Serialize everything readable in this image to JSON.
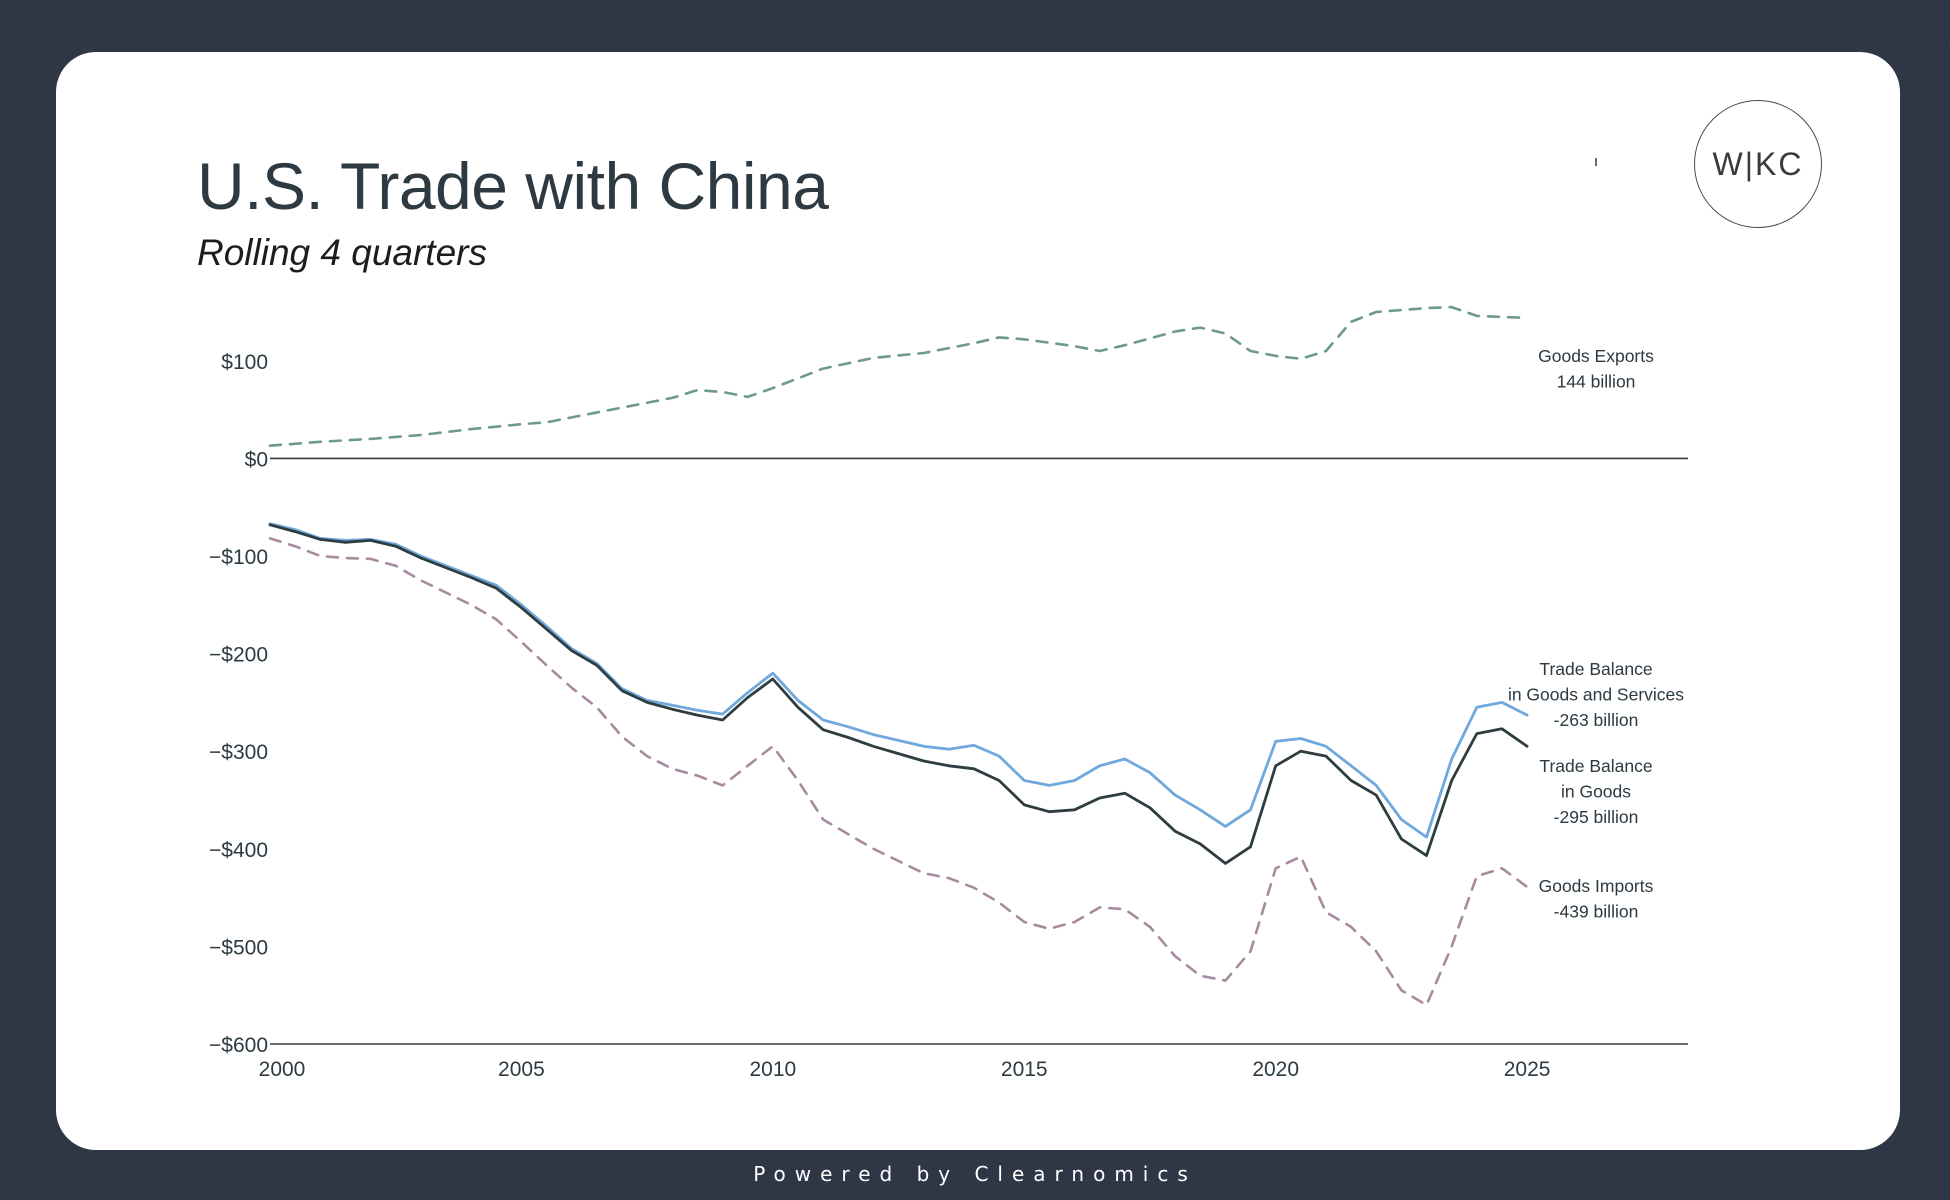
{
  "header": {
    "title": "U.S. Trade with China",
    "subtitle": "Rolling 4 quarters",
    "logo_text": "W|KC"
  },
  "footer": {
    "text": "Powered by Clearnomics"
  },
  "chart_data": {
    "type": "line",
    "title": "U.S. Trade with China",
    "subtitle": "Rolling 4 quarters",
    "xlabel": "",
    "ylabel": "",
    "xlim": [
      2000,
      2028.2
    ],
    "ylim": [
      -600,
      150
    ],
    "x_ticks": [
      2000,
      2005,
      2010,
      2015,
      2020,
      2025
    ],
    "y_ticks": [
      {
        "value": 100,
        "label": "$100"
      },
      {
        "value": 0,
        "label": "$0"
      },
      {
        "value": -100,
        "label": "−$100"
      },
      {
        "value": -200,
        "label": "−$200"
      },
      {
        "value": -300,
        "label": "−$300"
      },
      {
        "value": -400,
        "label": "−$400"
      },
      {
        "value": -500,
        "label": "−$500"
      },
      {
        "value": -600,
        "label": "−$600"
      }
    ],
    "grid": false,
    "colors": {
      "exports": "#6e9b87",
      "imports": "#a88aa0",
      "balance_goods_services": "#6fa8dc",
      "balance_goods": "#2e3d40",
      "axis": "#3a3a3a",
      "text": "#2d3a42"
    },
    "series": [
      {
        "name": "Goods Exports",
        "label_lines": [
          "Goods Exports",
          "144 billion"
        ],
        "style": "dashed",
        "color_key": "exports",
        "points": [
          [
            2000,
            13
          ],
          [
            2001,
            17
          ],
          [
            2002,
            20
          ],
          [
            2003,
            24
          ],
          [
            2004,
            30
          ],
          [
            2005,
            35
          ],
          [
            2005.5,
            37
          ],
          [
            2006,
            42
          ],
          [
            2007,
            52
          ],
          [
            2008,
            62
          ],
          [
            2008.5,
            70
          ],
          [
            2009,
            68
          ],
          [
            2009.5,
            63
          ],
          [
            2010,
            72
          ],
          [
            2011,
            92
          ],
          [
            2012,
            103
          ],
          [
            2013,
            108
          ],
          [
            2014,
            118
          ],
          [
            2014.5,
            124
          ],
          [
            2015,
            122
          ],
          [
            2016,
            115
          ],
          [
            2016.5,
            110
          ],
          [
            2017,
            116
          ],
          [
            2018,
            130
          ],
          [
            2018.5,
            134
          ],
          [
            2019,
            128
          ],
          [
            2019.5,
            110
          ],
          [
            2020,
            105
          ],
          [
            2020.5,
            102
          ],
          [
            2021,
            110
          ],
          [
            2021.5,
            140
          ],
          [
            2022,
            150
          ],
          [
            2023,
            154
          ],
          [
            2023.5,
            155
          ],
          [
            2024,
            146
          ],
          [
            2025,
            144
          ]
        ]
      },
      {
        "name": "Trade Balance in Goods and Services",
        "label_lines": [
          "Trade Balance",
          "in Goods and Services",
          "-263 billion"
        ],
        "style": "solid",
        "color_key": "balance_goods_services",
        "points": [
          [
            2000,
            -67
          ],
          [
            2000.5,
            -73
          ],
          [
            2001,
            -82
          ],
          [
            2001.5,
            -84
          ],
          [
            2002,
            -83
          ],
          [
            2002.5,
            -88
          ],
          [
            2003,
            -100
          ],
          [
            2004,
            -120
          ],
          [
            2004.5,
            -130
          ],
          [
            2005,
            -150
          ],
          [
            2005.5,
            -172
          ],
          [
            2006,
            -195
          ],
          [
            2006.5,
            -210
          ],
          [
            2007,
            -236
          ],
          [
            2007.5,
            -248
          ],
          [
            2008,
            -253
          ],
          [
            2008.5,
            -258
          ],
          [
            2009,
            -262
          ],
          [
            2009.5,
            -240
          ],
          [
            2010,
            -220
          ],
          [
            2010.5,
            -248
          ],
          [
            2011,
            -268
          ],
          [
            2011.5,
            -275
          ],
          [
            2012,
            -283
          ],
          [
            2013,
            -295
          ],
          [
            2013.5,
            -298
          ],
          [
            2014,
            -294
          ],
          [
            2014.5,
            -305
          ],
          [
            2015,
            -330
          ],
          [
            2015.5,
            -335
          ],
          [
            2016,
            -330
          ],
          [
            2016.5,
            -315
          ],
          [
            2017,
            -308
          ],
          [
            2017.5,
            -322
          ],
          [
            2018,
            -345
          ],
          [
            2018.5,
            -360
          ],
          [
            2019,
            -377
          ],
          [
            2019.5,
            -360
          ],
          [
            2020,
            -290
          ],
          [
            2020.5,
            -287
          ],
          [
            2021,
            -295
          ],
          [
            2021.5,
            -315
          ],
          [
            2022,
            -335
          ],
          [
            2022.5,
            -370
          ],
          [
            2023,
            -388
          ],
          [
            2023.5,
            -308
          ],
          [
            2024,
            -255
          ],
          [
            2024.5,
            -250
          ],
          [
            2025,
            -263
          ]
        ]
      },
      {
        "name": "Trade Balance in Goods",
        "label_lines": [
          "Trade Balance",
          "in Goods",
          "-295 billion"
        ],
        "style": "solid",
        "color_key": "balance_goods",
        "points": [
          [
            2000,
            -68
          ],
          [
            2000.5,
            -75
          ],
          [
            2001,
            -83
          ],
          [
            2001.5,
            -86
          ],
          [
            2002,
            -84
          ],
          [
            2002.5,
            -90
          ],
          [
            2003,
            -102
          ],
          [
            2004,
            -122
          ],
          [
            2004.5,
            -133
          ],
          [
            2005,
            -153
          ],
          [
            2005.5,
            -175
          ],
          [
            2006,
            -197
          ],
          [
            2006.5,
            -212
          ],
          [
            2007,
            -238
          ],
          [
            2007.5,
            -250
          ],
          [
            2008,
            -257
          ],
          [
            2008.5,
            -263
          ],
          [
            2009,
            -268
          ],
          [
            2009.5,
            -245
          ],
          [
            2010,
            -226
          ],
          [
            2010.5,
            -255
          ],
          [
            2011,
            -278
          ],
          [
            2011.5,
            -286
          ],
          [
            2012,
            -295
          ],
          [
            2013,
            -310
          ],
          [
            2013.5,
            -315
          ],
          [
            2014,
            -318
          ],
          [
            2014.5,
            -330
          ],
          [
            2015,
            -355
          ],
          [
            2015.5,
            -362
          ],
          [
            2016,
            -360
          ],
          [
            2016.5,
            -348
          ],
          [
            2017,
            -343
          ],
          [
            2017.5,
            -358
          ],
          [
            2018,
            -382
          ],
          [
            2018.5,
            -395
          ],
          [
            2019,
            -415
          ],
          [
            2019.5,
            -398
          ],
          [
            2020,
            -315
          ],
          [
            2020.5,
            -300
          ],
          [
            2021,
            -305
          ],
          [
            2021.5,
            -330
          ],
          [
            2022,
            -345
          ],
          [
            2022.5,
            -390
          ],
          [
            2023,
            -407
          ],
          [
            2023.5,
            -330
          ],
          [
            2024,
            -282
          ],
          [
            2024.5,
            -277
          ],
          [
            2025,
            -295
          ]
        ]
      },
      {
        "name": "Goods Imports",
        "label_lines": [
          "Goods Imports",
          "-439 billion"
        ],
        "style": "dashed",
        "color_key": "imports",
        "points": [
          [
            2000,
            -82
          ],
          [
            2000.5,
            -90
          ],
          [
            2001,
            -100
          ],
          [
            2001.5,
            -102
          ],
          [
            2002,
            -103
          ],
          [
            2002.5,
            -110
          ],
          [
            2003,
            -125
          ],
          [
            2004,
            -150
          ],
          [
            2004.5,
            -165
          ],
          [
            2005,
            -188
          ],
          [
            2005.5,
            -212
          ],
          [
            2006,
            -235
          ],
          [
            2006.5,
            -255
          ],
          [
            2007,
            -285
          ],
          [
            2007.5,
            -305
          ],
          [
            2008,
            -318
          ],
          [
            2008.5,
            -325
          ],
          [
            2009,
            -335
          ],
          [
            2009.5,
            -315
          ],
          [
            2010,
            -295
          ],
          [
            2010.5,
            -330
          ],
          [
            2011,
            -370
          ],
          [
            2011.5,
            -385
          ],
          [
            2012,
            -400
          ],
          [
            2013,
            -425
          ],
          [
            2013.5,
            -430
          ],
          [
            2014,
            -440
          ],
          [
            2014.5,
            -455
          ],
          [
            2015,
            -475
          ],
          [
            2015.5,
            -482
          ],
          [
            2016,
            -475
          ],
          [
            2016.5,
            -460
          ],
          [
            2017,
            -462
          ],
          [
            2017.5,
            -480
          ],
          [
            2018,
            -510
          ],
          [
            2018.5,
            -530
          ],
          [
            2019,
            -535
          ],
          [
            2019.5,
            -505
          ],
          [
            2020,
            -420
          ],
          [
            2020.5,
            -408
          ],
          [
            2021,
            -465
          ],
          [
            2021.5,
            -480
          ],
          [
            2022,
            -505
          ],
          [
            2022.5,
            -545
          ],
          [
            2023,
            -560
          ],
          [
            2023.5,
            -500
          ],
          [
            2024,
            -428
          ],
          [
            2024.5,
            -420
          ],
          [
            2025,
            -439
          ]
        ]
      }
    ]
  }
}
